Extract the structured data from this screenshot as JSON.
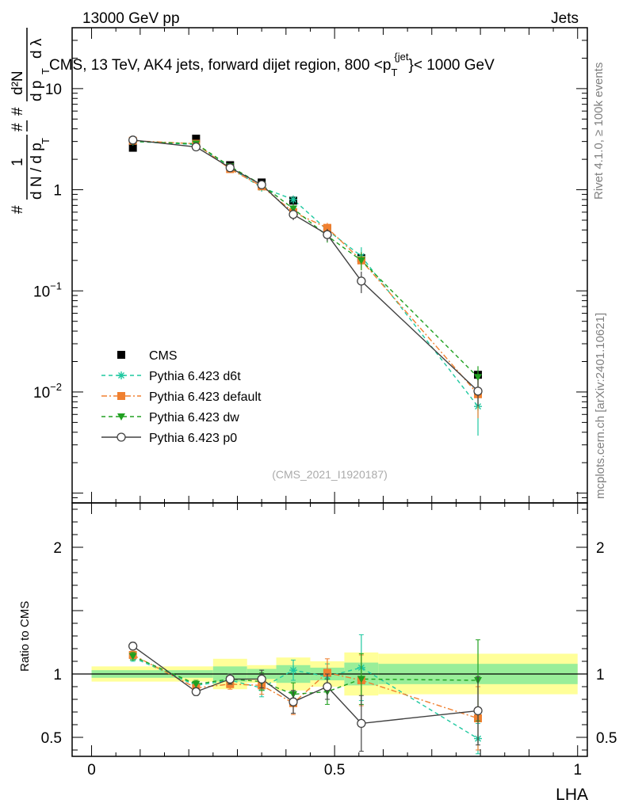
{
  "header": {
    "left": "13000 GeV pp",
    "right": "Jets",
    "side_rivet": "Rivet 4.1.0, ≥ 100k events",
    "side_url": "mcplots.cern.ch [arXiv:2401.10621]",
    "watermark": "(CMS_2021_I1920187)"
  },
  "chart_data": [
    {
      "type": "line",
      "panel": "main",
      "title": "CMS, 13 TeV, AK4 jets, forward dijet region, 800 <p_T^{jet}< 1000 GeV",
      "title_parts": {
        "main": "CMS, 13 TeV, AK4 jets, forward dijet region, 800 <p",
        "sub": "T",
        "sup": "{jet",
        "end": "}< 1000 GeV"
      },
      "ylabel": "1/N dN/dpT dλ",
      "ylabel_parts": {
        "hash": "#",
        "one": "1",
        "dn": "d N / d p",
        "t": "T",
        "d2n": "d²N",
        "dpt": "d p",
        "dl": "d λ"
      },
      "yscale": "log",
      "ylim": [
        0.0008,
        40
      ],
      "xlim": [
        -0.04,
        1.02
      ],
      "ytick_labels": [
        {
          "v": 0.01,
          "base": "10",
          "exp": "−2"
        },
        {
          "v": 0.1,
          "base": "10",
          "exp": "−1"
        },
        {
          "v": 1,
          "base": "1",
          "exp": ""
        },
        {
          "v": 10,
          "base": "10",
          "exp": ""
        }
      ],
      "legend_position": "lower-left",
      "x": [
        0.085,
        0.215,
        0.285,
        0.35,
        0.415,
        0.485,
        0.555,
        0.795
      ],
      "series": [
        {
          "name": "CMS",
          "color": "#000000",
          "marker": "square",
          "line": "none",
          "values": [
            2.6,
            3.2,
            1.75,
            1.18,
            0.78,
            0.41,
            0.21,
            0.0148
          ],
          "errors": [
            0.1,
            0.1,
            0.06,
            0.04,
            0.03,
            0.02,
            0.015,
            0.001
          ]
        },
        {
          "name": "Pythia 6.423 d6t",
          "color": "#1fc8a0",
          "marker": "asterisk",
          "line": "dashed",
          "values": [
            3.0,
            2.8,
            1.65,
            1.05,
            0.8,
            0.4,
            0.22,
            0.0072
          ],
          "errors": [
            0.06,
            0.06,
            0.05,
            0.08,
            0.07,
            0.05,
            0.05,
            0.0035
          ]
        },
        {
          "name": "Pythia 6.423 default",
          "color": "#f08030",
          "marker": "square",
          "line": "dashdot",
          "values": [
            3.05,
            2.85,
            1.6,
            1.08,
            0.6,
            0.42,
            0.2,
            0.0095
          ],
          "errors": [
            0.06,
            0.06,
            0.05,
            0.06,
            0.07,
            0.05,
            0.04,
            0.004
          ]
        },
        {
          "name": "Pythia 6.423 dw",
          "color": "#20a020",
          "marker": "triangle-down",
          "line": "dashed",
          "values": [
            3.0,
            2.85,
            1.7,
            1.12,
            0.65,
            0.35,
            0.2,
            0.014
          ],
          "errors": [
            0.06,
            0.06,
            0.05,
            0.06,
            0.07,
            0.05,
            0.04,
            0.004
          ]
        },
        {
          "name": "Pythia 6.423 p0",
          "color": "#404040",
          "marker": "circle-open",
          "line": "solid",
          "values": [
            3.1,
            2.65,
            1.65,
            1.12,
            0.57,
            0.36,
            0.125,
            0.0102
          ],
          "errors": [
            0.06,
            0.06,
            0.05,
            0.06,
            0.07,
            0.05,
            0.03,
            0.003
          ]
        }
      ]
    },
    {
      "type": "line",
      "panel": "ratio",
      "xlabel": "LHA",
      "ylabel": "Ratio to CMS",
      "ylim": [
        0.35,
        2.35
      ],
      "xlim": [
        -0.04,
        1.02
      ],
      "xtick_labels": [
        {
          "v": 0,
          "label": "0"
        },
        {
          "v": 0.5,
          "label": "0.5"
        },
        {
          "v": 1,
          "label": "1"
        }
      ],
      "ytick_labels": [
        {
          "v": 0.5,
          "label": "0.5"
        },
        {
          "v": 1,
          "label": "1"
        },
        {
          "v": 2,
          "label": "2"
        }
      ],
      "bands": [
        {
          "x0": 0.0,
          "x1": 0.25,
          "y_inner": 0.03,
          "y_outer": 0.06
        },
        {
          "x0": 0.25,
          "x1": 0.32,
          "y_inner": 0.06,
          "y_outer": 0.12
        },
        {
          "x0": 0.32,
          "x1": 0.38,
          "y_inner": 0.04,
          "y_outer": 0.07
        },
        {
          "x0": 0.38,
          "x1": 0.45,
          "y_inner": 0.07,
          "y_outer": 0.13
        },
        {
          "x0": 0.45,
          "x1": 0.52,
          "y_inner": 0.05,
          "y_outer": 0.1
        },
        {
          "x0": 0.52,
          "x1": 0.59,
          "y_inner": 0.09,
          "y_outer": 0.17
        },
        {
          "x0": 0.59,
          "x1": 1.0,
          "y_inner": 0.08,
          "y_outer": 0.16
        }
      ],
      "band_colors": {
        "inner": "#99ee99",
        "outer": "#ffff99"
      },
      "x": [
        0.085,
        0.215,
        0.285,
        0.35,
        0.415,
        0.485,
        0.555,
        0.795
      ],
      "series": [
        {
          "name": "Pythia 6.423 d6t",
          "color": "#1fc8a0",
          "marker": "asterisk",
          "line": "dashed",
          "values": [
            1.13,
            0.91,
            0.95,
            0.89,
            1.03,
            0.98,
            1.05,
            0.49
          ],
          "errors": [
            0.03,
            0.03,
            0.05,
            0.07,
            0.08,
            0.1,
            0.26,
            0.12
          ]
        },
        {
          "name": "Pythia 6.423 default",
          "color": "#f08030",
          "marker": "square",
          "line": "dashdot",
          "values": [
            1.15,
            0.89,
            0.92,
            0.91,
            0.77,
            1.01,
            0.95,
            0.65
          ],
          "errors": [
            0.03,
            0.03,
            0.04,
            0.07,
            0.09,
            0.11,
            0.2,
            0.25
          ]
        },
        {
          "name": "Pythia 6.423 dw",
          "color": "#20a020",
          "marker": "triangle-down",
          "line": "dashed",
          "values": [
            1.14,
            0.92,
            0.96,
            0.94,
            0.84,
            0.86,
            0.96,
            0.95
          ],
          "errors": [
            0.03,
            0.03,
            0.04,
            0.07,
            0.09,
            0.1,
            0.2,
            0.32
          ]
        },
        {
          "name": "Pythia 6.423 p0",
          "color": "#404040",
          "marker": "circle-open",
          "line": "solid",
          "values": [
            1.22,
            0.86,
            0.96,
            0.96,
            0.78,
            0.9,
            0.61,
            0.71
          ],
          "errors": [
            0.03,
            0.03,
            0.04,
            0.07,
            0.09,
            0.1,
            0.22,
            0.27
          ]
        }
      ]
    }
  ]
}
